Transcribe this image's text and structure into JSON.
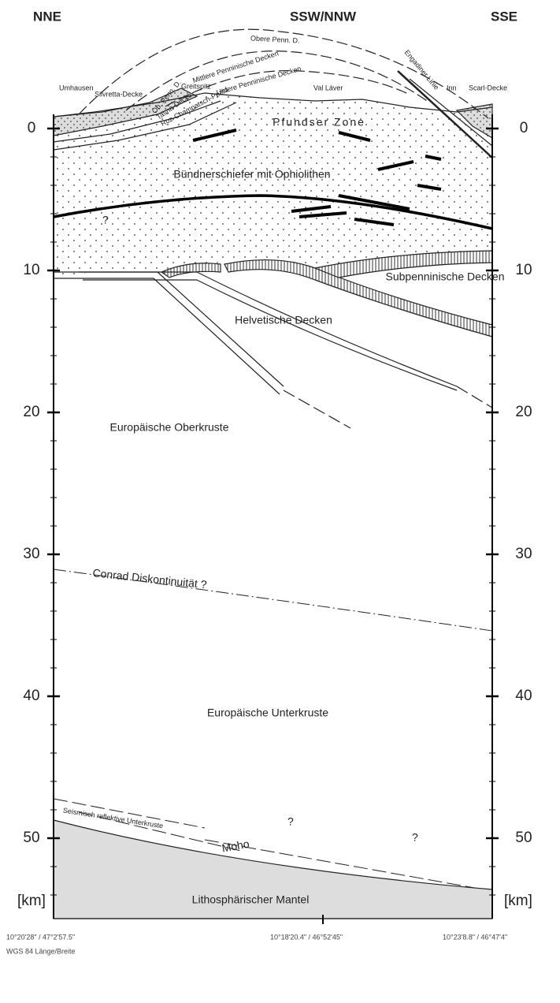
{
  "header": {
    "left": "NNE",
    "center": "SSW/NNW",
    "right": "SSE"
  },
  "depth_axis": {
    "ticks": [
      0,
      10,
      20,
      30,
      40,
      50
    ],
    "unit": "[km]"
  },
  "surface_labels": [
    "Umhausen",
    "Silvretta-Decke",
    "Ob. Penn. D.",
    "Greitspitz",
    "Tasna-Decke",
    "Roz-Champatsch-Pezid",
    "Obere Penn. D.",
    "Mittlere Penninische Decken",
    "Untere Penninische Decken",
    "Val Láver",
    "Engadiner Linie",
    "Inn",
    "Scarl-Decke"
  ],
  "units": {
    "pfundser": "Pfundser Zone",
    "buendner": "Bündnerschiefer mit Ophiolithen",
    "q1": "?",
    "subpenninisch": "Subpenninische Decken",
    "helvetisch": "Helvetische Decken",
    "oberkruste": "Europäische Oberkruste",
    "conrad": "Conrad Diskontinuität ?",
    "unterkruste": "Europäische Unterkruste",
    "reflektiv": "Seismisch reflektive Unterkruste",
    "q2": "?",
    "q3": "?",
    "moho": "Moho",
    "mantel": "Lithosphärischer Mantel"
  },
  "coordinates": {
    "left": "10°20'28\" / 47°2'57.5\"",
    "center": "10°18'20.4\" / 46°52'45\"",
    "right": "10°23'8.8\" / 46°47'4\"",
    "system": "WGS 84 Länge/Breite"
  }
}
